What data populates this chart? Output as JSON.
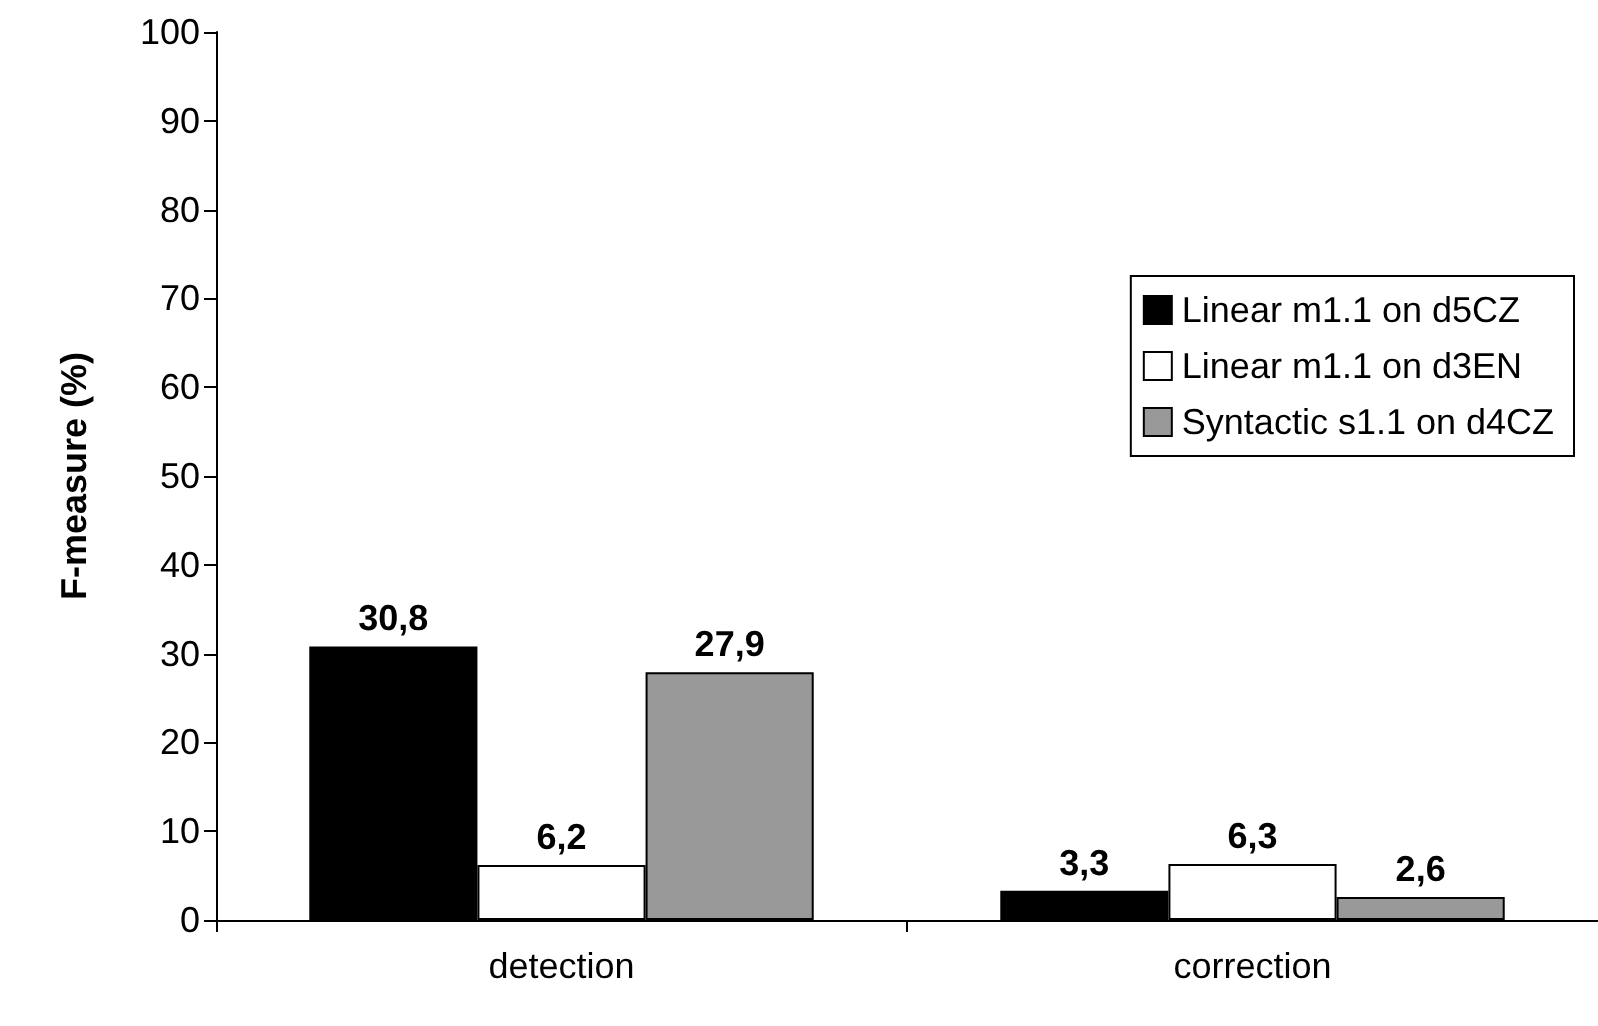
{
  "chart_data": {
    "type": "bar",
    "ylabel": "F-measure (%)",
    "categories": [
      "detection",
      "correction"
    ],
    "series": [
      {
        "name": "Linear m1.1 on d5CZ",
        "color": "#000000",
        "values": [
          30.8,
          3.3
        ],
        "value_labels": [
          "30,8",
          "3,3"
        ]
      },
      {
        "name": "Linear m1.1 on d3EN",
        "color": "#ffffff",
        "values": [
          6.2,
          6.3
        ],
        "value_labels": [
          "6,2",
          "6,3"
        ]
      },
      {
        "name": "Syntactic s1.1 on d4CZ",
        "color": "#999999",
        "values": [
          27.9,
          2.6
        ],
        "value_labels": [
          "27,9",
          "2,6"
        ]
      }
    ],
    "ylim": [
      0,
      100
    ],
    "yticks": [
      0,
      10,
      20,
      30,
      40,
      50,
      60,
      70,
      80,
      90,
      100
    ],
    "grid": false,
    "legend": "right"
  }
}
